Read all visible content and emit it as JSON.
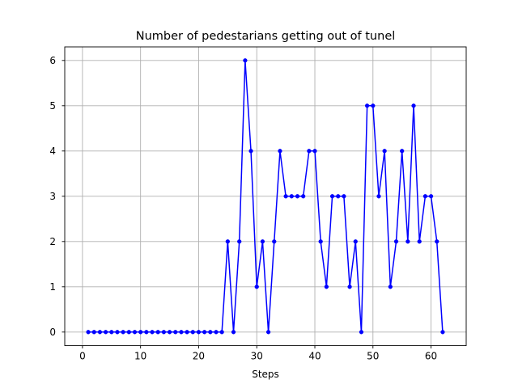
{
  "chart_data": {
    "type": "line",
    "title": "Number of pedestarians getting out of tunel",
    "xlabel": "Steps",
    "ylabel": "",
    "xlim": [
      -3.05,
      66.05
    ],
    "ylim": [
      -0.3,
      6.3
    ],
    "xticks": [
      0,
      10,
      20,
      30,
      40,
      50,
      60
    ],
    "yticks": [
      0,
      1,
      2,
      3,
      4,
      5,
      6
    ],
    "grid": true,
    "legend": "none",
    "series": [
      {
        "color": "#0000ff",
        "marker": "circle",
        "x": [
          1,
          2,
          3,
          4,
          5,
          6,
          7,
          8,
          9,
          10,
          11,
          12,
          13,
          14,
          15,
          16,
          17,
          18,
          19,
          20,
          21,
          22,
          23,
          24,
          25,
          26,
          27,
          28,
          29,
          30,
          31,
          32,
          33,
          34,
          35,
          36,
          37,
          38,
          39,
          40,
          41,
          42,
          43,
          44,
          45,
          46,
          47,
          48,
          49,
          50,
          51,
          52,
          53,
          54,
          55,
          56,
          57,
          58,
          59,
          60,
          61,
          62
        ],
        "y": [
          0,
          0,
          0,
          0,
          0,
          0,
          0,
          0,
          0,
          0,
          0,
          0,
          0,
          0,
          0,
          0,
          0,
          0,
          0,
          0,
          0,
          0,
          0,
          0,
          2,
          0,
          2,
          6,
          4,
          1,
          2,
          0,
          2,
          4,
          3,
          3,
          3,
          3,
          4,
          4,
          2,
          1,
          3,
          3,
          3,
          1,
          2,
          0,
          5,
          5,
          3,
          4,
          1,
          2,
          4,
          2,
          5,
          2,
          3,
          3,
          2,
          0
        ]
      }
    ]
  }
}
